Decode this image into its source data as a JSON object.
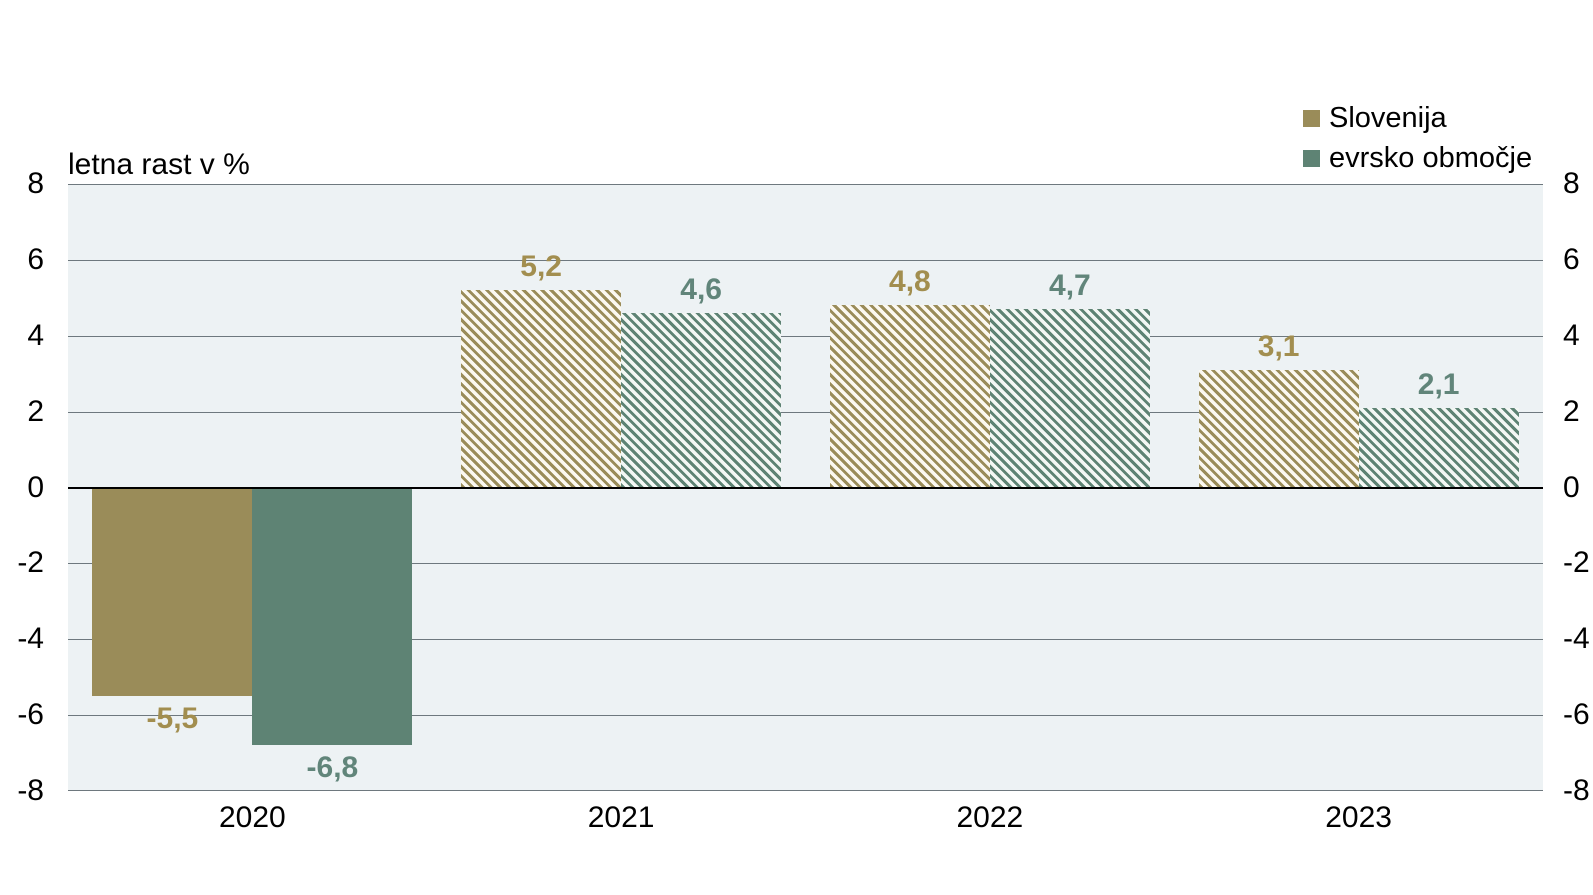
{
  "chart_data": {
    "type": "bar",
    "title": "letna rast v %",
    "categories": [
      "2020",
      "2021",
      "2022",
      "2023"
    ],
    "series": [
      {
        "name": "Slovenija",
        "color": "#9a8c59",
        "hatch_bg": "#fbf8f0",
        "label_color": "#a28e4f",
        "values": [
          -5.5,
          5.2,
          4.8,
          3.1
        ],
        "value_labels": [
          "-5,5",
          "5,2",
          "4,8",
          "3,1"
        ],
        "fill_styles": [
          "solid",
          "hatch",
          "hatch",
          "hatch"
        ]
      },
      {
        "name": "evrsko območje",
        "color": "#5e8374",
        "hatch_bg": "#f3f7f4",
        "label_color": "#61857a",
        "values": [
          -6.8,
          4.6,
          4.7,
          2.1
        ],
        "value_labels": [
          "-6,8",
          "4,6",
          "4,7",
          "2,1"
        ],
        "fill_styles": [
          "solid",
          "hatch",
          "hatch",
          "hatch"
        ]
      }
    ],
    "ylabel": "letna rast v %",
    "ylim": [
      -8,
      8
    ],
    "yticks": [
      8,
      6,
      4,
      2,
      0,
      -2,
      -4,
      -6,
      -8
    ],
    "ytick_labels": [
      "8",
      "6",
      "4",
      "2",
      "0",
      "-2",
      "-4",
      "-6",
      "-8"
    ],
    "grid": true,
    "legend_position": "top-right",
    "axis_labels_both_sides": true
  },
  "style": {
    "plot_bg": "#edf2f4",
    "grid_color": "#6e787e",
    "zero_line_color": "#000000",
    "axis_text_color": "#000000"
  }
}
